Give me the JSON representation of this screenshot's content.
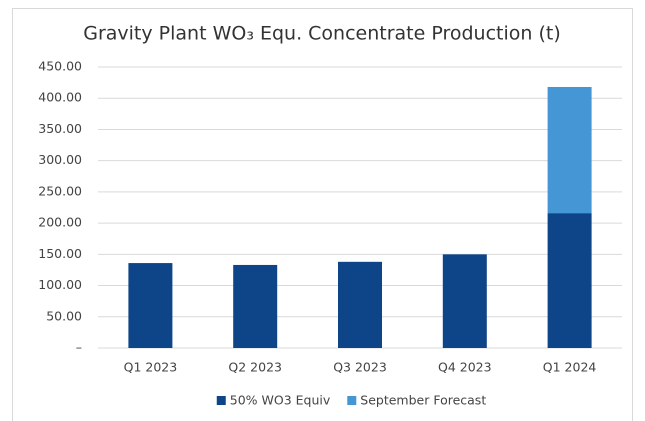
{
  "chart_data": {
    "type": "stacked_bar",
    "title": "Gravity Plant WO₃ Equ. Concentrate Production (t)",
    "categories": [
      "Q1 2023",
      "Q2 2023",
      "Q3 2023",
      "Q4 2023",
      "Q1 2024"
    ],
    "series": [
      {
        "name": "50% WO3 Equiv",
        "color": "#0e4589",
        "values": [
          136,
          133,
          138,
          150,
          216
        ]
      },
      {
        "name": "September Forecast",
        "color": "#4596d4",
        "values": [
          null,
          null,
          null,
          null,
          202
        ]
      }
    ],
    "ylim": [
      0,
      450
    ],
    "yticks": [
      {
        "value": 0,
        "label": "–"
      },
      {
        "value": 50,
        "label": "50.00"
      },
      {
        "value": 100,
        "label": "100.00"
      },
      {
        "value": 150,
        "label": "150.00"
      },
      {
        "value": 200,
        "label": "200.00"
      },
      {
        "value": 250,
        "label": "250.00"
      },
      {
        "value": 300,
        "label": "300.00"
      },
      {
        "value": 350,
        "label": "350.00"
      },
      {
        "value": 400,
        "label": "400.00"
      },
      {
        "value": 450,
        "label": "450.00"
      }
    ],
    "grid": true,
    "legend": "bottom"
  }
}
